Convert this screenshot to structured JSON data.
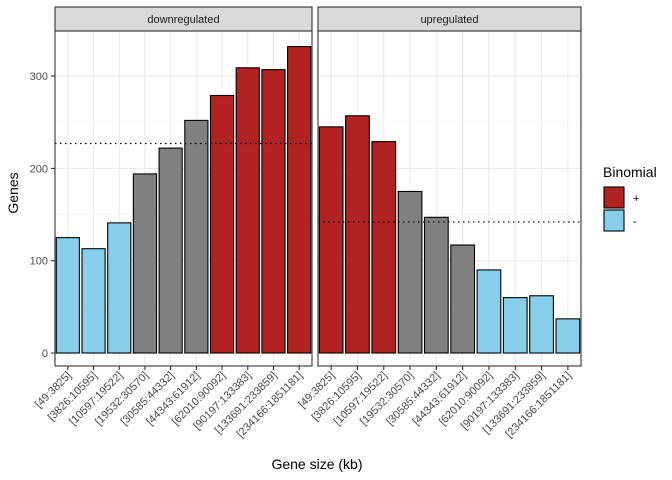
{
  "chart_data": {
    "type": "bar",
    "xlabel": "Gene size (kb)",
    "ylabel": "Genes",
    "ylim": [
      0,
      340
    ],
    "yticks": [
      0,
      100,
      200,
      300
    ],
    "grid": true,
    "categories": [
      "[49:3825]",
      "[3826:10595]",
      "[10597:19522]",
      "[19532:30570]",
      "[30585:44332]",
      "[44343:61912]",
      "[62010:90092]",
      "[90197:133383]",
      "[133691:233859]",
      "[234166:1851181]"
    ],
    "facets": [
      {
        "name": "downregulated",
        "values": [
          125,
          113,
          141,
          194,
          222,
          252,
          279,
          309,
          307,
          332
        ],
        "groups": [
          "-",
          "-",
          "-",
          "0",
          "0",
          "0",
          "+",
          "+",
          "+",
          "+"
        ],
        "threshold": 227
      },
      {
        "name": "upregulated",
        "values": [
          245,
          257,
          229,
          175,
          147,
          117,
          90,
          60,
          62,
          37
        ],
        "groups": [
          "+",
          "+",
          "+",
          "0",
          "0",
          "0",
          "-",
          "-",
          "-",
          "-"
        ],
        "threshold": 142
      }
    ],
    "colors": {
      "+": "#b22222",
      "0": "#808080",
      "-": "#87ceeb"
    },
    "legend": {
      "title": "Binomial",
      "position": "right",
      "entries": [
        {
          "key": "+",
          "label": "+"
        },
        {
          "key": "-",
          "label": "-"
        }
      ]
    }
  }
}
